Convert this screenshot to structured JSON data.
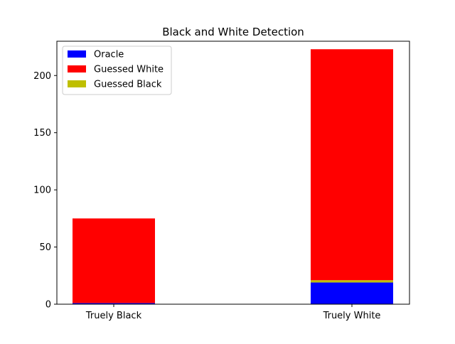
{
  "chart_data": {
    "type": "bar",
    "stacked": true,
    "title": "Black and White Detection",
    "xlabel": "",
    "ylabel": "",
    "categories": [
      "Truely Black",
      "Truely White"
    ],
    "ylim": [
      0,
      230
    ],
    "yticks": [
      0,
      50,
      100,
      150,
      200
    ],
    "series": [
      {
        "name": "Oracle",
        "color": "#0000ff",
        "values": [
          1,
          19
        ]
      },
      {
        "name": "Guessed Black",
        "color": "#bfbf00",
        "values": [
          0,
          2
        ]
      },
      {
        "name": "Guessed White",
        "color": "#ff0000",
        "values": [
          74,
          202
        ]
      }
    ],
    "legend": {
      "position": "upper-left",
      "order": [
        "Oracle",
        "Guessed White",
        "Guessed Black"
      ]
    },
    "grid": false
  }
}
